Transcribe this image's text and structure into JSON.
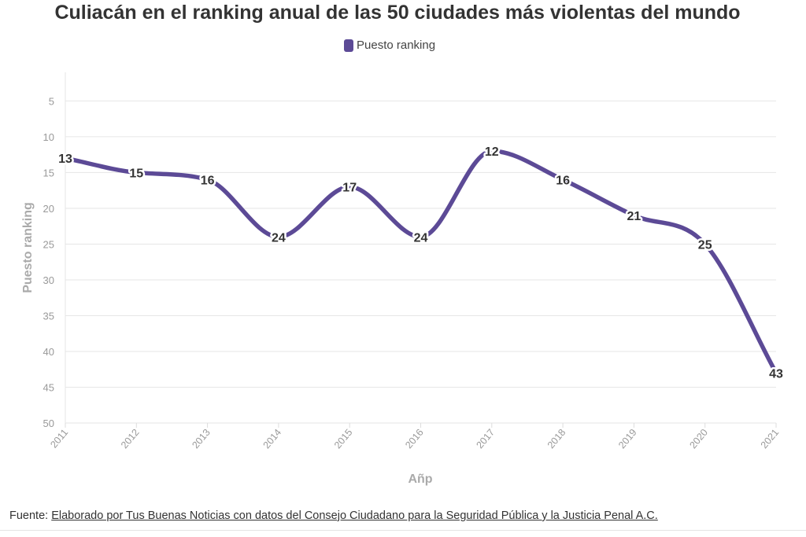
{
  "chart_data": {
    "type": "line",
    "title": "Culiacán en el ranking anual de las 50 ciudades más violentas del mundo",
    "xlabel": "Añp",
    "ylabel": "Puesto ranking",
    "categories": [
      "2011",
      "2012",
      "2013",
      "2014",
      "2015",
      "2016",
      "2017",
      "2018",
      "2019",
      "2020",
      "2021"
    ],
    "series": [
      {
        "name": "Puesto ranking",
        "values": [
          13,
          15,
          16,
          24,
          17,
          24,
          12,
          16,
          21,
          25,
          43
        ],
        "color": "#5c4a96"
      }
    ],
    "y_ticks": [
      5,
      10,
      15,
      20,
      25,
      30,
      35,
      40,
      45,
      50
    ],
    "ylim": [
      50,
      1
    ],
    "y_reversed": true,
    "grid": true,
    "legend_position": "top-center",
    "data_labels": true
  },
  "footer": {
    "prefix": "Fuente:",
    "link_text": "Elaborado por Tus Buenas Noticias con datos del Consejo Ciudadano para la Seguridad Pública y la Justicia Penal A.C."
  }
}
